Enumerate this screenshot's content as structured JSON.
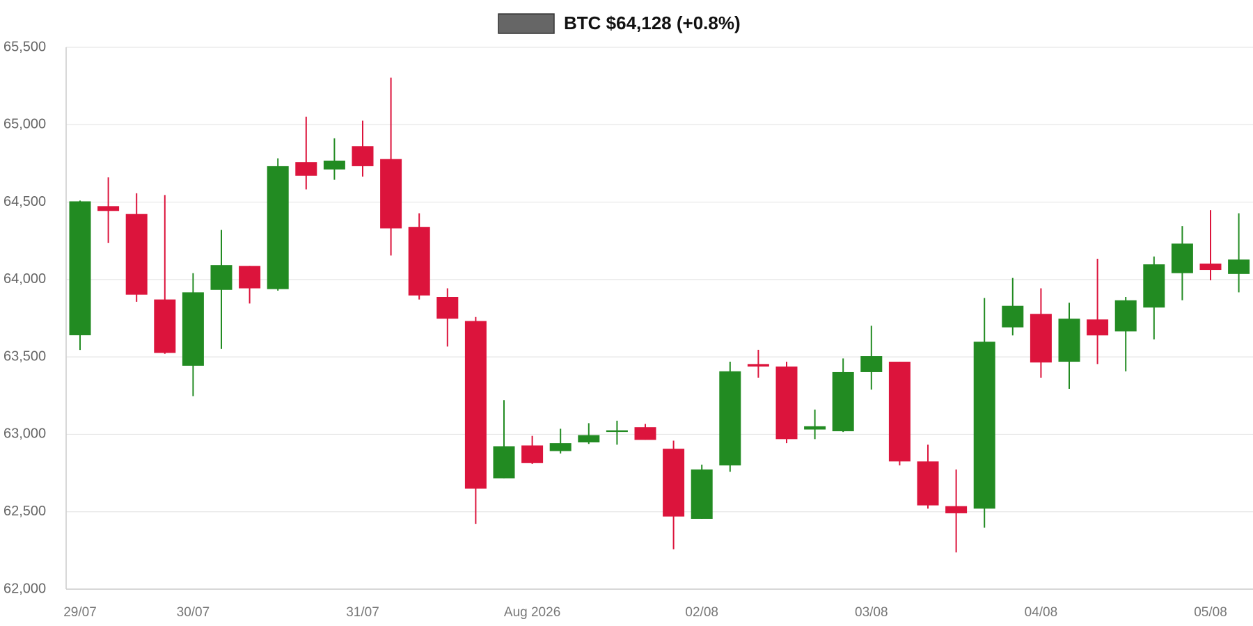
{
  "chart_data": {
    "type": "candlestick",
    "categories": [
      "29/07",
      null,
      null,
      null,
      "30/07",
      null,
      null,
      null,
      null,
      null,
      "31/07",
      null,
      null,
      null,
      null,
      null,
      "Aug 2026",
      null,
      null,
      null,
      null,
      null,
      "02/08",
      null,
      null,
      null,
      null,
      null,
      "03/08",
      null,
      null,
      null,
      null,
      null,
      "04/08",
      null,
      null,
      null,
      null,
      null,
      "05/08",
      null
    ],
    "series": [
      {
        "name": "BTC $64,128 (+0.8%)",
        "color": "#666666",
        "up_color": "#228b22",
        "down_color": "#dc143c",
        "open": [
          63640,
          64474,
          64423,
          63871,
          63443,
          63933,
          64088,
          63938,
          64758,
          64711,
          64861,
          64778,
          64340,
          63887,
          63732,
          62716,
          62928,
          62892,
          62948,
          63015,
          63046,
          62907,
          62454,
          62799,
          63454,
          63438,
          63031,
          63020,
          63402,
          63469,
          62825,
          62536,
          62520,
          63691,
          63778,
          63469,
          63742,
          63665,
          63819,
          64041,
          64103,
          64036
        ],
        "high": [
          64510,
          64660,
          64557,
          64546,
          64041,
          64320,
          64088,
          64783,
          65052,
          64912,
          65026,
          65304,
          64428,
          63943,
          63758,
          63221,
          62990,
          63036,
          63072,
          63088,
          63067,
          62959,
          62804,
          63469,
          63546,
          63469,
          63160,
          63490,
          63701,
          63469,
          62933,
          62773,
          63881,
          64010,
          63943,
          63850,
          64134,
          63887,
          64149,
          64345,
          64448,
          64428
        ],
        "low": [
          63545,
          64237,
          63856,
          63520,
          63247,
          63551,
          63845,
          63928,
          64582,
          64644,
          64665,
          64155,
          63871,
          63567,
          62422,
          62716,
          62809,
          62876,
          62938,
          62933,
          62964,
          62258,
          62454,
          62758,
          63366,
          62943,
          62969,
          63015,
          63289,
          62799,
          62520,
          62237,
          62397,
          63639,
          63366,
          63294,
          63454,
          63407,
          63613,
          63866,
          63995,
          63917
        ],
        "close": [
          64505,
          64443,
          63902,
          63526,
          63917,
          64093,
          63943,
          64732,
          64670,
          64768,
          64732,
          64330,
          63897,
          63747,
          62649,
          62923,
          62814,
          62943,
          62995,
          63026,
          62964,
          62469,
          62773,
          63407,
          63438,
          62969,
          63052,
          63402,
          63505,
          62825,
          62541,
          62490,
          63598,
          63830,
          63464,
          63747,
          63639,
          63866,
          64098,
          64232,
          64062,
          64129
        ]
      }
    ],
    "ylim": [
      62000,
      65500
    ],
    "yticks": [
      {
        "value": 62000,
        "label": "62,000"
      },
      {
        "value": 62500,
        "label": "62,500"
      },
      {
        "value": 63000,
        "label": "63,000"
      },
      {
        "value": 63500,
        "label": "63,500"
      },
      {
        "value": 64000,
        "label": "64,000"
      },
      {
        "value": 64500,
        "label": "64,500"
      },
      {
        "value": 65000,
        "label": "65,000"
      },
      {
        "value": 65500,
        "label": "65,500"
      }
    ],
    "grid": true
  }
}
